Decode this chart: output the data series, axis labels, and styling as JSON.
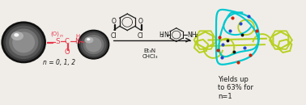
{
  "background_color": "#f0ede8",
  "fig_width": 3.78,
  "fig_height": 1.3,
  "dpi": 100,
  "red_color": "#e8374a",
  "black_color": "#1a1a1a",
  "cyan_color": "#00c8d0",
  "lime_color": "#b8d020",
  "n_label": "n = 0, 1, 2",
  "conditions_text": "Et₃N\nCHCl₃",
  "yield_text": "Yields up\nto 63% for\nn=1",
  "text_fontsize": 5.5,
  "small_fontsize": 5.0
}
